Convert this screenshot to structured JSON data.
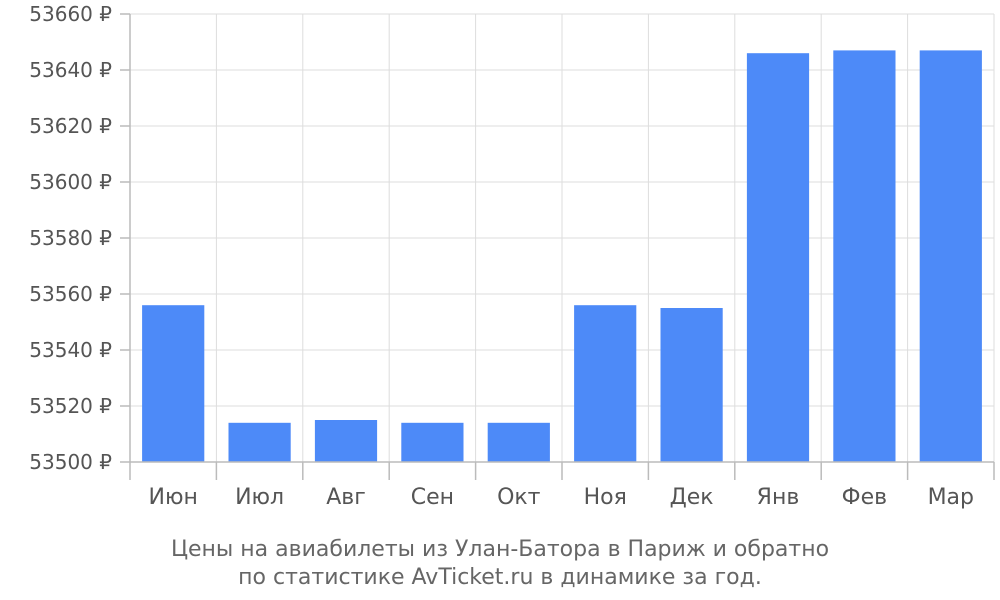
{
  "chart_data": {
    "type": "bar",
    "categories": [
      "Июн",
      "Июл",
      "Авг",
      "Сен",
      "Окт",
      "Ноя",
      "Дек",
      "Янв",
      "Фев",
      "Мар"
    ],
    "values": [
      53556,
      53514,
      53515,
      53514,
      53514,
      53556,
      53555,
      53646,
      53647,
      53647
    ],
    "ylim": [
      53500,
      53660
    ],
    "yticks": [
      53500,
      53520,
      53540,
      53560,
      53580,
      53600,
      53620,
      53640,
      53660
    ],
    "y_unit": "₽",
    "grid": true,
    "bar_color": "#4d8af8",
    "caption_line1": "Цены на авиабилеты из Улан-Батора в Париж и обратно",
    "caption_line2": "по статистике AvTicket.ru в динамике за год."
  }
}
